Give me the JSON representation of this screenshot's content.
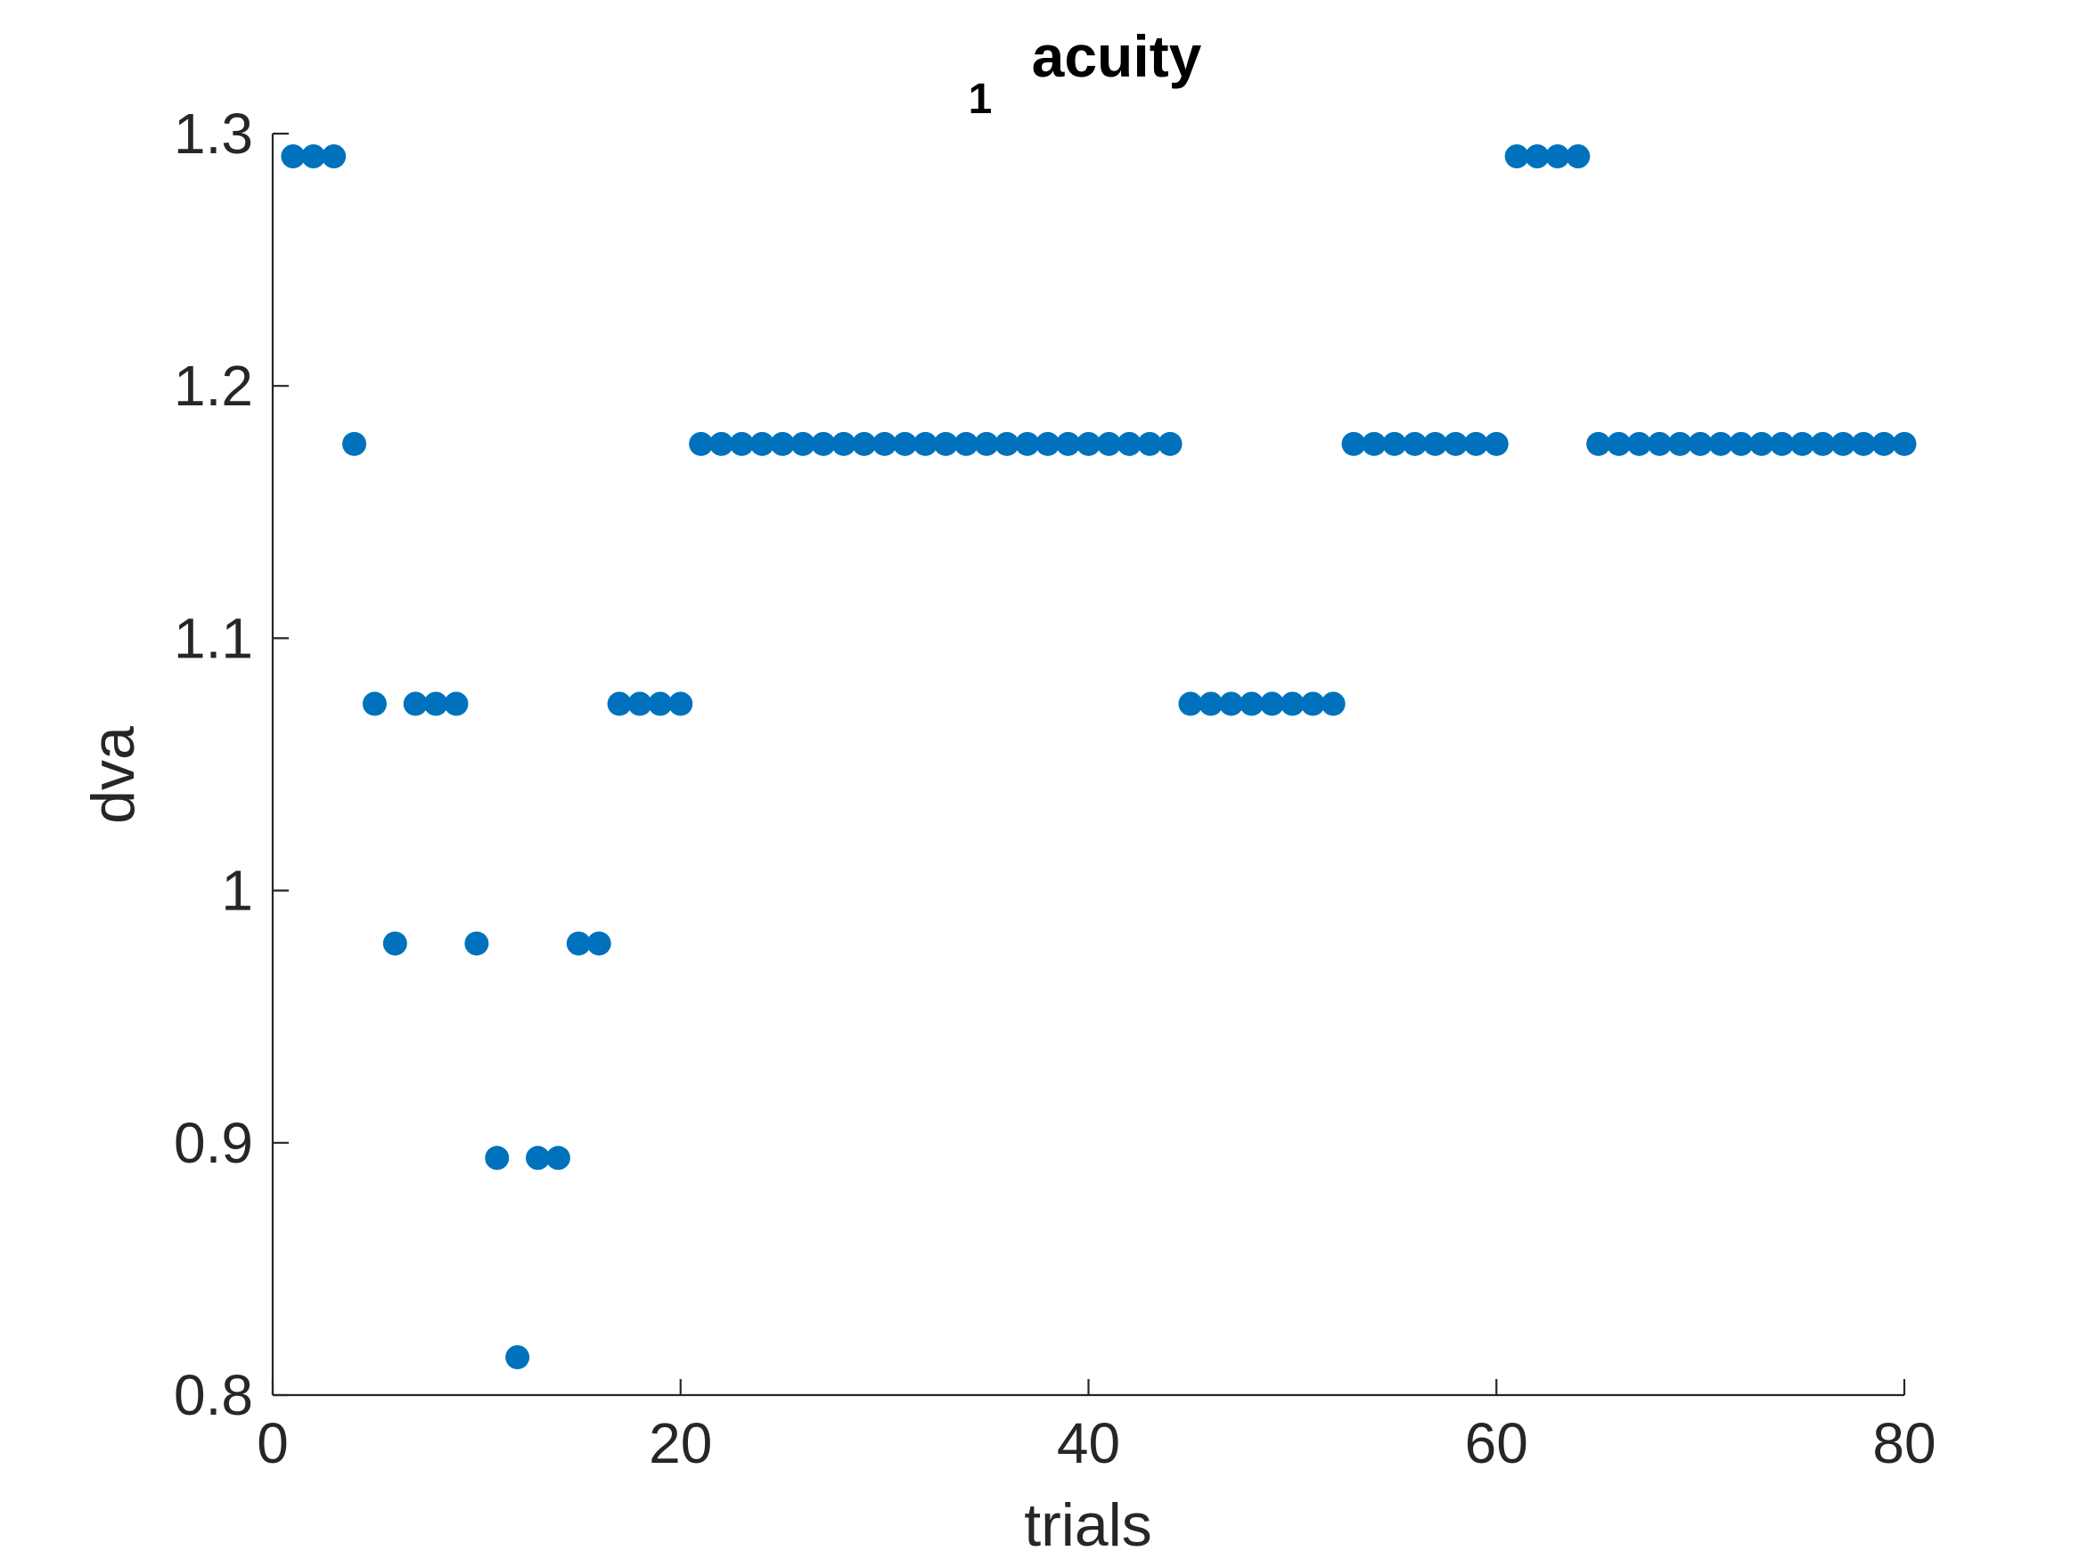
{
  "chart_data": {
    "type": "scatter",
    "title_main": "acuity",
    "title_prefix": "1",
    "xlabel": "trials",
    "ylabel": "dva",
    "xlim": [
      0,
      80
    ],
    "ylim": [
      0.8,
      1.3
    ],
    "xticks": [
      0,
      20,
      40,
      60,
      80
    ],
    "xtick_labels": [
      "0",
      "20",
      "40",
      "60",
      "80"
    ],
    "yticks": [
      0.8,
      0.9,
      1.0,
      1.1,
      1.2,
      1.3
    ],
    "ytick_labels": [
      "0.8",
      "0.9",
      "1",
      "1.1",
      "1.2",
      "1.3"
    ],
    "grid": false,
    "marker_color": "#0072BD",
    "axis_color": "#262626",
    "series": [
      {
        "x": [
          1,
          2,
          3,
          4,
          5,
          6,
          7,
          8,
          9,
          10,
          11,
          12,
          13,
          14,
          15,
          16,
          17,
          18,
          19,
          20,
          21,
          22,
          23,
          24,
          25,
          26,
          27,
          28,
          29,
          30,
          31,
          32,
          33,
          34,
          35,
          36,
          37,
          38,
          39,
          40,
          41,
          42,
          43,
          44,
          45,
          46,
          47,
          48,
          49,
          50,
          51,
          52,
          53,
          54,
          55,
          56,
          57,
          58,
          59,
          60,
          61,
          62,
          63,
          64,
          65,
          66,
          67,
          68,
          69,
          70,
          71,
          72,
          73,
          74,
          75,
          76,
          77,
          78,
          79,
          80
        ],
        "y": [
          1.291,
          1.291,
          1.291,
          1.177,
          1.074,
          0.979,
          1.074,
          1.074,
          1.074,
          0.979,
          0.894,
          0.815,
          0.894,
          0.894,
          0.979,
          0.979,
          1.074,
          1.074,
          1.074,
          1.074,
          1.177,
          1.177,
          1.177,
          1.177,
          1.177,
          1.177,
          1.177,
          1.177,
          1.177,
          1.177,
          1.177,
          1.177,
          1.177,
          1.177,
          1.177,
          1.177,
          1.177,
          1.177,
          1.177,
          1.177,
          1.177,
          1.177,
          1.177,
          1.177,
          1.074,
          1.074,
          1.074,
          1.074,
          1.074,
          1.074,
          1.074,
          1.074,
          1.177,
          1.177,
          1.177,
          1.177,
          1.177,
          1.177,
          1.177,
          1.177,
          1.291,
          1.291,
          1.291,
          1.291,
          1.177,
          1.177,
          1.177,
          1.177,
          1.177,
          1.177,
          1.177,
          1.177,
          1.177,
          1.177,
          1.177,
          1.177,
          1.177,
          1.177,
          1.177,
          1.177
        ]
      }
    ]
  }
}
